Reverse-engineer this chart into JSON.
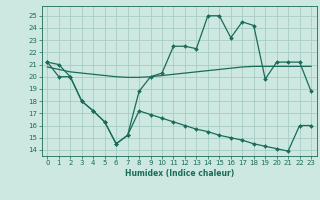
{
  "xlabel": "Humidex (Indice chaleur)",
  "xlim": [
    -0.5,
    23.5
  ],
  "ylim": [
    13.5,
    25.8
  ],
  "yticks": [
    14,
    15,
    16,
    17,
    18,
    19,
    20,
    21,
    22,
    23,
    24,
    25
  ],
  "xticks": [
    0,
    1,
    2,
    3,
    4,
    5,
    6,
    7,
    8,
    9,
    10,
    11,
    12,
    13,
    14,
    15,
    16,
    17,
    18,
    19,
    20,
    21,
    22,
    23
  ],
  "bg_color": "#cce8e0",
  "grid_color": "#a8ccc4",
  "line_color": "#1a6b5a",
  "line1_y": [
    21.2,
    21.0,
    20.0,
    18.0,
    17.2,
    16.3,
    14.5,
    15.2,
    18.8,
    20.0,
    20.3,
    22.5,
    22.5,
    22.3,
    25.0,
    25.0,
    23.2,
    24.5,
    24.2,
    19.8,
    21.2,
    21.2,
    21.2,
    18.8
  ],
  "line2_y": [
    20.8,
    20.6,
    20.4,
    20.3,
    20.2,
    20.1,
    20.0,
    19.95,
    19.95,
    20.0,
    20.1,
    20.2,
    20.3,
    20.4,
    20.5,
    20.6,
    20.7,
    20.8,
    20.85,
    20.85,
    20.85,
    20.85,
    20.85,
    20.85
  ],
  "line3_y": [
    21.2,
    20.0,
    20.0,
    18.0,
    17.2,
    16.3,
    14.5,
    15.2,
    17.2,
    16.9,
    16.6,
    16.3,
    16.0,
    15.7,
    15.5,
    15.2,
    15.0,
    14.8,
    14.5,
    14.3,
    14.1,
    13.9,
    16.0,
    16.0
  ]
}
